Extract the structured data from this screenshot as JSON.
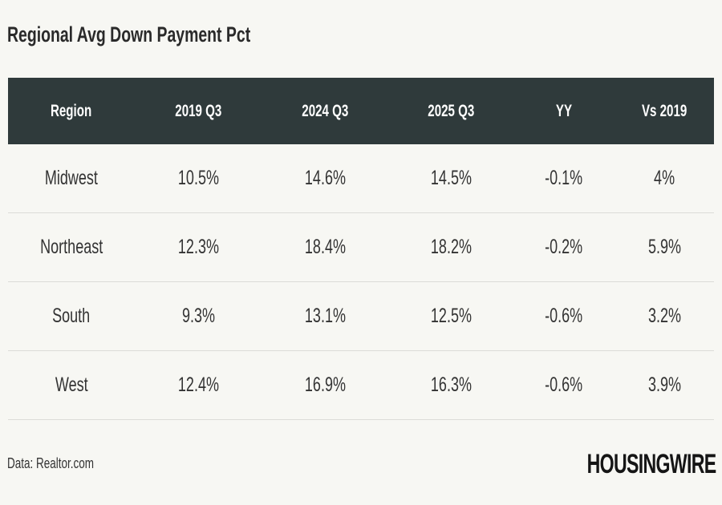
{
  "chart_data": {
    "type": "table",
    "title": "Regional Avg Down Payment Pct",
    "columns": [
      "Region",
      "2019 Q3",
      "2024 Q3",
      "2025 Q3",
      "YY",
      "Vs 2019"
    ],
    "rows": [
      [
        "Midwest",
        "10.5%",
        "14.6%",
        "14.5%",
        "-0.1%",
        "4%"
      ],
      [
        "Northeast",
        "12.3%",
        "18.4%",
        "18.2%",
        "-0.2%",
        "5.9%"
      ],
      [
        "South",
        "9.3%",
        "13.1%",
        "12.5%",
        "-0.6%",
        "3.2%"
      ],
      [
        "West",
        "12.4%",
        "16.9%",
        "16.3%",
        "-0.6%",
        "3.9%"
      ]
    ],
    "source": "Data: Realtor.com",
    "logo": "HOUSINGWIRE"
  },
  "colors": {
    "header_bg": "#2f3a3b",
    "background": "#f7f7f3"
  }
}
